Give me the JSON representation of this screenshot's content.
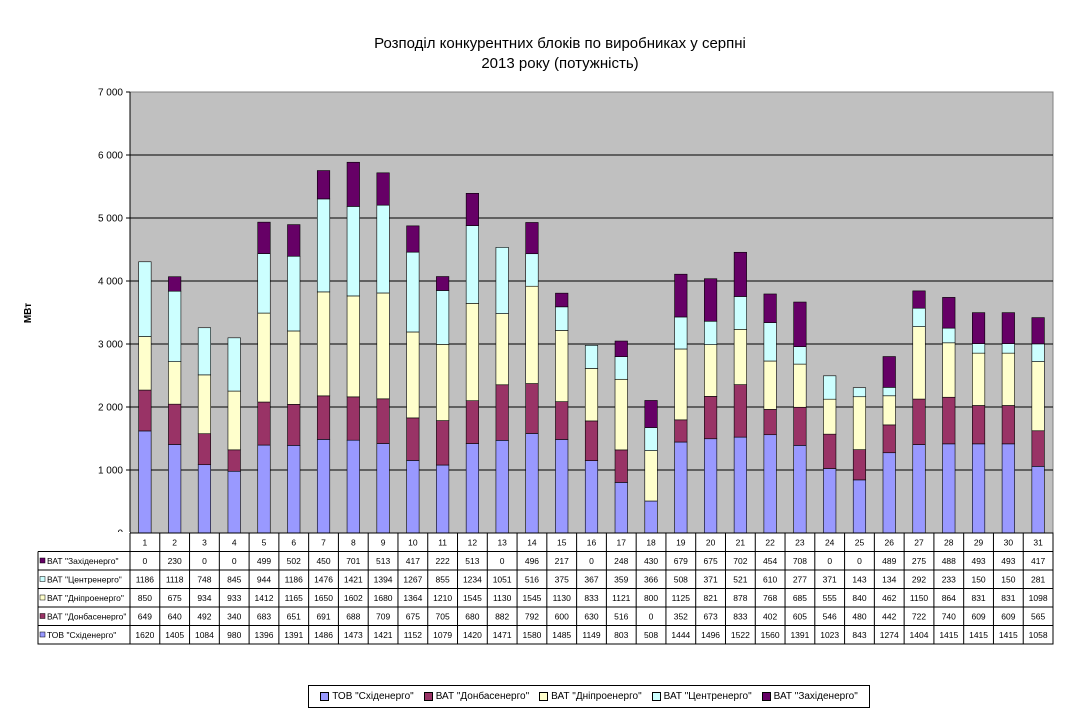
{
  "chart_data": {
    "type": "bar",
    "stacked": true,
    "title_line1": "Розподіл конкурентних блоків по виробниках у серпні",
    "title_line2": "2013 року (потужність)",
    "ylabel": "МВт",
    "ylim": [
      0,
      7000
    ],
    "yticks": [
      0,
      1000,
      2000,
      3000,
      4000,
      5000,
      6000,
      7000
    ],
    "ytick_labels": [
      "0",
      "1 000",
      "2 000",
      "3 000",
      "4 000",
      "5 000",
      "6 000",
      "7 000"
    ],
    "categories": [
      "1",
      "2",
      "3",
      "4",
      "5",
      "6",
      "7",
      "8",
      "9",
      "10",
      "11",
      "12",
      "13",
      "14",
      "15",
      "16",
      "17",
      "18",
      "19",
      "20",
      "21",
      "22",
      "23",
      "24",
      "25",
      "26",
      "27",
      "28",
      "29",
      "30",
      "31"
    ],
    "grid": true,
    "legend_position": "bottom",
    "series": [
      {
        "name": "ТОВ \"Східенерго\"",
        "color": "#9999ff",
        "values": [
          1620,
          1405,
          1084,
          980,
          1396,
          1391,
          1486,
          1473,
          1421,
          1152,
          1079,
          1420,
          1471,
          1580,
          1485,
          1149,
          803,
          508,
          1444,
          1496,
          1522,
          1560,
          1391,
          1023,
          843,
          1274,
          1404,
          1415,
          1415,
          1415,
          1058
        ]
      },
      {
        "name": "ВАТ \"Донбасенерго\"",
        "color": "#993366",
        "values": [
          649,
          640,
          492,
          340,
          683,
          651,
          691,
          688,
          709,
          675,
          705,
          680,
          882,
          792,
          600,
          630,
          516,
          0,
          352,
          673,
          833,
          402,
          605,
          546,
          480,
          442,
          722,
          740,
          609,
          609,
          565
        ]
      },
      {
        "name": "ВАТ \"Дніпроенерго\"",
        "color": "#ffffcc",
        "values": [
          850,
          675,
          934,
          933,
          1412,
          1165,
          1650,
          1602,
          1680,
          1364,
          1210,
          1545,
          1130,
          1545,
          1130,
          833,
          1121,
          800,
          1125,
          821,
          878,
          768,
          685,
          555,
          840,
          462,
          1150,
          864,
          831,
          831,
          1098
        ]
      },
      {
        "name": "ВАТ \"Центренерго\"",
        "color": "#ccffff",
        "values": [
          1186,
          1118,
          748,
          845,
          944,
          1186,
          1476,
          1421,
          1394,
          1267,
          855,
          1234,
          1051,
          516,
          375,
          367,
          359,
          366,
          508,
          371,
          521,
          610,
          277,
          371,
          143,
          134,
          292,
          233,
          150,
          150,
          281
        ]
      },
      {
        "name": "ВАТ \"Західенерго\"",
        "color": "#660066",
        "values": [
          0,
          230,
          0,
          0,
          499,
          502,
          450,
          701,
          513,
          417,
          222,
          513,
          0,
          496,
          217,
          0,
          248,
          430,
          679,
          675,
          702,
          454,
          708,
          0,
          0,
          489,
          275,
          488,
          493,
          493,
          417
        ]
      }
    ]
  }
}
